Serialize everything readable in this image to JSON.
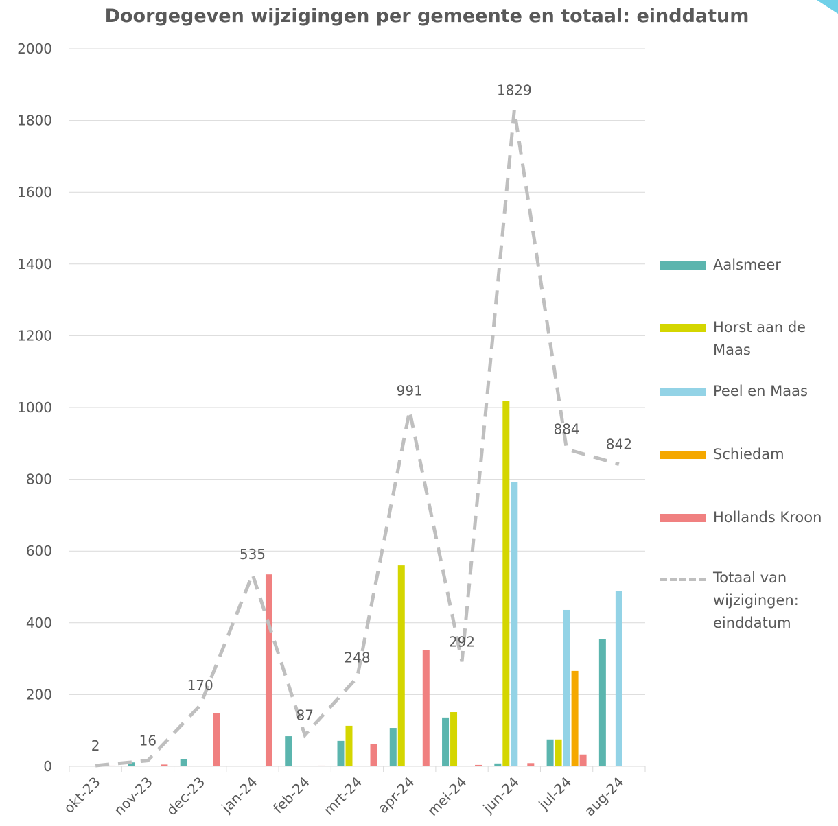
{
  "chart_data": {
    "type": "bar",
    "title": "Doorgegeven wijzigingen per gemeente en totaal: einddatum",
    "categories": [
      "okt-23",
      "nov-23",
      "dec-23",
      "jan-24",
      "feb-24",
      "mrt-24",
      "apr-24",
      "mei-24",
      "jun-24",
      "jul-24",
      "aug-24"
    ],
    "series": [
      {
        "name": "Aalsmeer",
        "color": "#5bb5ae",
        "values": [
          null,
          11,
          21,
          null,
          84,
          71,
          107,
          136,
          8,
          75,
          354
        ]
      },
      {
        "name": "Horst aan de Maas",
        "color": "#d4d600",
        "values": [
          null,
          null,
          null,
          null,
          null,
          113,
          560,
          151,
          1019,
          75,
          null
        ]
      },
      {
        "name": "Peel en Maas",
        "color": "#93d3e6",
        "values": [
          null,
          null,
          null,
          null,
          null,
          null,
          null,
          null,
          792,
          436,
          488
        ]
      },
      {
        "name": "Schiedam",
        "color": "#f5a800",
        "values": [
          null,
          null,
          null,
          null,
          null,
          null,
          null,
          null,
          null,
          266,
          null
        ]
      },
      {
        "name": "Hollands Kroon",
        "color": "#f08080",
        "values": [
          2,
          5,
          149,
          535,
          2,
          63,
          325,
          4,
          9,
          33,
          null
        ]
      },
      {
        "name": "Totaal van wijzigingen: einddatum",
        "color": "#bfbfbf",
        "type": "line",
        "values": [
          2,
          16,
          170,
          535,
          87,
          248,
          991,
          292,
          1829,
          884,
          842
        ]
      }
    ],
    "ylim": [
      0,
      2000
    ],
    "yticks": [
      0,
      200,
      400,
      600,
      800,
      1000,
      1200,
      1400,
      1600,
      1800,
      2000
    ],
    "grid": true,
    "legend": "right"
  }
}
